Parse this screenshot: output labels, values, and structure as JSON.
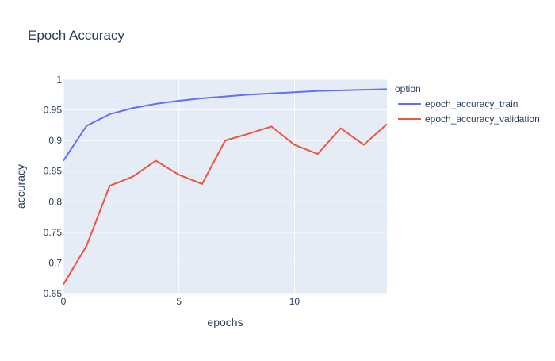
{
  "chart_data": {
    "type": "line",
    "title": "Epoch Accuracy",
    "xlabel": "epochs",
    "ylabel": "accuracy",
    "xlim": [
      0,
      14
    ],
    "ylim": [
      0.65,
      1.0
    ],
    "x_ticks": [
      0,
      5,
      10
    ],
    "y_ticks": [
      0.65,
      0.7,
      0.75,
      0.8,
      0.85,
      0.9,
      0.95,
      1
    ],
    "y_tick_labels": [
      "0.65",
      "0.7",
      "0.75",
      "0.8",
      "0.85",
      "0.9",
      "0.95",
      "1"
    ],
    "x_tick_labels": [
      "0",
      "5",
      "10"
    ],
    "legend_title": "option",
    "legend_position": "right",
    "grid": true,
    "x": [
      0,
      1,
      2,
      3,
      4,
      5,
      6,
      7,
      8,
      9,
      10,
      11,
      12,
      13,
      14
    ],
    "series": [
      {
        "name": "epoch_accuracy_train",
        "color": "#636efa",
        "values": [
          0.867,
          0.924,
          0.943,
          0.953,
          0.96,
          0.965,
          0.969,
          0.972,
          0.975,
          0.977,
          0.979,
          0.981,
          0.982,
          0.983,
          0.984
        ]
      },
      {
        "name": "epoch_accuracy_validation",
        "color": "#ef553b",
        "values": [
          0.665,
          0.728,
          0.826,
          0.841,
          0.867,
          0.844,
          0.829,
          0.9,
          0.911,
          0.923,
          0.893,
          0.878,
          0.92,
          0.893,
          0.927
        ]
      }
    ],
    "colors": {
      "plot_background": "#e5ecf6",
      "grid": "#ffffff",
      "text": "#2a3f5f"
    }
  }
}
